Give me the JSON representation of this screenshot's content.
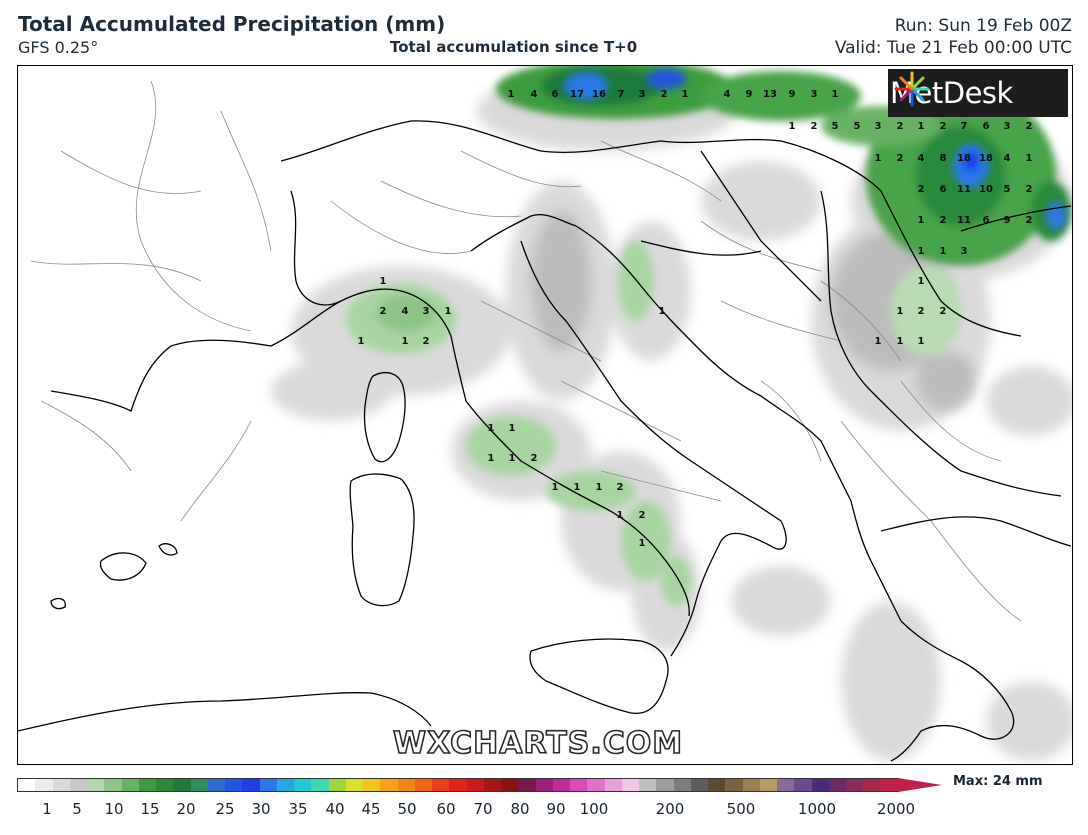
{
  "header": {
    "title": "Total Accumulated Precipitation (mm)",
    "model": "GFS 0.25°",
    "subtitle": "Total accumulation since T+0",
    "run": "Run: Sun 19 Feb 00Z",
    "valid": "Valid: Tue 21 Feb 00:00 UTC"
  },
  "branding": {
    "logo_text": "MetDesk",
    "watermark": "WXCHARTS.COM"
  },
  "legend": {
    "ticks": [
      "1",
      "5",
      "10",
      "15",
      "20",
      "25",
      "30",
      "35",
      "40",
      "45",
      "50",
      "60",
      "70",
      "80",
      "90",
      "100",
      "200",
      "500",
      "1000",
      "2000"
    ],
    "max_label": "Max: 24 mm",
    "colors": [
      "#ffffff",
      "#ececec",
      "#d9d9d9",
      "#c8c8c8",
      "#b5d6b0",
      "#8fc48a",
      "#67b364",
      "#3c9b3c",
      "#2a8a3a",
      "#1d7a3a",
      "#2f8f5f",
      "#2a6fcf",
      "#2255e0",
      "#1d3ee8",
      "#2c78e8",
      "#26a7e6",
      "#22c8d8",
      "#3bd9b0",
      "#9ed63c",
      "#d8e02a",
      "#f2c41a",
      "#f5a216",
      "#f28516",
      "#ee6517",
      "#e84018",
      "#e02418",
      "#c81c1c",
      "#a51818",
      "#8a1414",
      "#7a1a4a",
      "#9c1f78",
      "#c02c9c",
      "#d84cb8",
      "#e070c8",
      "#e8a0d8",
      "#f0c6e4",
      "#bfbfbf",
      "#9e9e9e",
      "#7d7d7d",
      "#5e5e5e",
      "#5a4a30",
      "#7a6440",
      "#9a8050",
      "#b89c60",
      "#8a6a9a",
      "#6a4a8a",
      "#4a2a7a",
      "#6a2a6a",
      "#8a2a5a",
      "#a8284e",
      "#c0204a"
    ]
  },
  "map_labels": [
    {
      "v": "1",
      "a": 510,
      "b": 96
    },
    {
      "v": "4",
      "a": 533,
      "b": 96
    },
    {
      "v": "6",
      "a": 554,
      "b": 96
    },
    {
      "v": "17",
      "a": 576,
      "b": 96
    },
    {
      "v": "16",
      "a": 598,
      "b": 96
    },
    {
      "v": "7",
      "a": 620,
      "b": 96
    },
    {
      "v": "3",
      "a": 641,
      "b": 96
    },
    {
      "v": "2",
      "a": 663,
      "b": 96
    },
    {
      "v": "1",
      "a": 684,
      "b": 96
    },
    {
      "v": "4",
      "a": 726,
      "b": 96
    },
    {
      "v": "9",
      "a": 748,
      "b": 96
    },
    {
      "v": "13",
      "a": 769,
      "b": 96
    },
    {
      "v": "9",
      "a": 791,
      "b": 96
    },
    {
      "v": "3",
      "a": 813,
      "b": 96
    },
    {
      "v": "1",
      "a": 834,
      "b": 96
    },
    {
      "v": "1",
      "a": 791,
      "b": 128
    },
    {
      "v": "2",
      "a": 813,
      "b": 128
    },
    {
      "v": "5",
      "a": 834,
      "b": 128
    },
    {
      "v": "5",
      "a": 856,
      "b": 128
    },
    {
      "v": "3",
      "a": 877,
      "b": 128
    },
    {
      "v": "2",
      "a": 899,
      "b": 128
    },
    {
      "v": "1",
      "a": 920,
      "b": 128
    },
    {
      "v": "2",
      "a": 942,
      "b": 128
    },
    {
      "v": "7",
      "a": 963,
      "b": 128
    },
    {
      "v": "6",
      "a": 985,
      "b": 128
    },
    {
      "v": "3",
      "a": 1006,
      "b": 128
    },
    {
      "v": "2",
      "a": 1028,
      "b": 128
    },
    {
      "v": "1",
      "a": 877,
      "b": 160
    },
    {
      "v": "2",
      "a": 899,
      "b": 160
    },
    {
      "v": "4",
      "a": 920,
      "b": 160
    },
    {
      "v": "8",
      "a": 942,
      "b": 160
    },
    {
      "v": "18",
      "a": 963,
      "b": 160
    },
    {
      "v": "18",
      "a": 985,
      "b": 160
    },
    {
      "v": "4",
      "a": 1006,
      "b": 160
    },
    {
      "v": "1",
      "a": 1028,
      "b": 160
    },
    {
      "v": "2",
      "a": 920,
      "b": 191
    },
    {
      "v": "6",
      "a": 942,
      "b": 191
    },
    {
      "v": "11",
      "a": 963,
      "b": 191
    },
    {
      "v": "10",
      "a": 985,
      "b": 191
    },
    {
      "v": "5",
      "a": 1006,
      "b": 191
    },
    {
      "v": "2",
      "a": 1028,
      "b": 191
    },
    {
      "v": "1",
      "a": 920,
      "b": 222
    },
    {
      "v": "2",
      "a": 942,
      "b": 222
    },
    {
      "v": "11",
      "a": 963,
      "b": 222
    },
    {
      "v": "6",
      "a": 985,
      "b": 222
    },
    {
      "v": "9",
      "a": 1006,
      "b": 222
    },
    {
      "v": "2",
      "a": 1028,
      "b": 222
    },
    {
      "v": "1",
      "a": 920,
      "b": 253
    },
    {
      "v": "1",
      "a": 942,
      "b": 253
    },
    {
      "v": "3",
      "a": 963,
      "b": 253
    },
    {
      "v": "1",
      "a": 920,
      "b": 283
    },
    {
      "v": "1",
      "a": 899,
      "b": 313
    },
    {
      "v": "2",
      "a": 920,
      "b": 313
    },
    {
      "v": "2",
      "a": 942,
      "b": 313
    },
    {
      "v": "1",
      "a": 877,
      "b": 343
    },
    {
      "v": "1",
      "a": 899,
      "b": 343
    },
    {
      "v": "1",
      "a": 920,
      "b": 343
    },
    {
      "v": "1",
      "a": 382,
      "b": 283
    },
    {
      "v": "2",
      "a": 382,
      "b": 313
    },
    {
      "v": "4",
      "a": 404,
      "b": 313
    },
    {
      "v": "3",
      "a": 425,
      "b": 313
    },
    {
      "v": "1",
      "a": 447,
      "b": 313
    },
    {
      "v": "1",
      "a": 360,
      "b": 343
    },
    {
      "v": "1",
      "a": 404,
      "b": 343
    },
    {
      "v": "2",
      "a": 425,
      "b": 343
    },
    {
      "v": "1",
      "a": 661,
      "b": 313
    },
    {
      "v": "1",
      "a": 490,
      "b": 430
    },
    {
      "v": "1",
      "a": 511,
      "b": 430
    },
    {
      "v": "1",
      "a": 490,
      "b": 460
    },
    {
      "v": "1",
      "a": 511,
      "b": 460
    },
    {
      "v": "2",
      "a": 533,
      "b": 460
    },
    {
      "v": "1",
      "a": 554,
      "b": 489
    },
    {
      "v": "1",
      "a": 576,
      "b": 489
    },
    {
      "v": "1",
      "a": 598,
      "b": 489
    },
    {
      "v": "2",
      "a": 619,
      "b": 489
    },
    {
      "v": "1",
      "a": 619,
      "b": 517
    },
    {
      "v": "2",
      "a": 641,
      "b": 517
    },
    {
      "v": "1",
      "a": 641,
      "b": 545
    }
  ]
}
